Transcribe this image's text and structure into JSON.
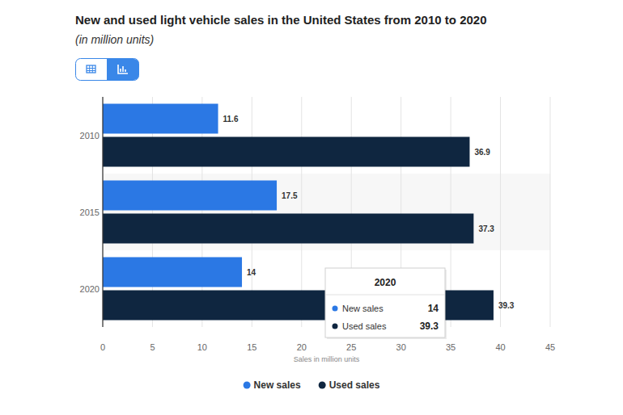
{
  "chart_data": {
    "type": "bar",
    "title": "New and used light vehicle sales in the United States from 2010 to 2020",
    "subtitle": "(in million units)",
    "orientation": "horizontal",
    "categories": [
      "2010",
      "2015",
      "2020"
    ],
    "series": [
      {
        "name": "New sales",
        "color": "#2b78e4",
        "values": [
          11.6,
          17.5,
          14
        ]
      },
      {
        "name": "Used sales",
        "color": "#0f2640",
        "values": [
          36.9,
          37.3,
          39.3
        ]
      }
    ],
    "xlabel": "Sales in million units",
    "xlim": [
      0,
      45
    ],
    "xticks": [
      0,
      5,
      10,
      15,
      20,
      25,
      30,
      35,
      40,
      45
    ],
    "grid": true,
    "legend": "bottom",
    "data_labels": true
  }
}
